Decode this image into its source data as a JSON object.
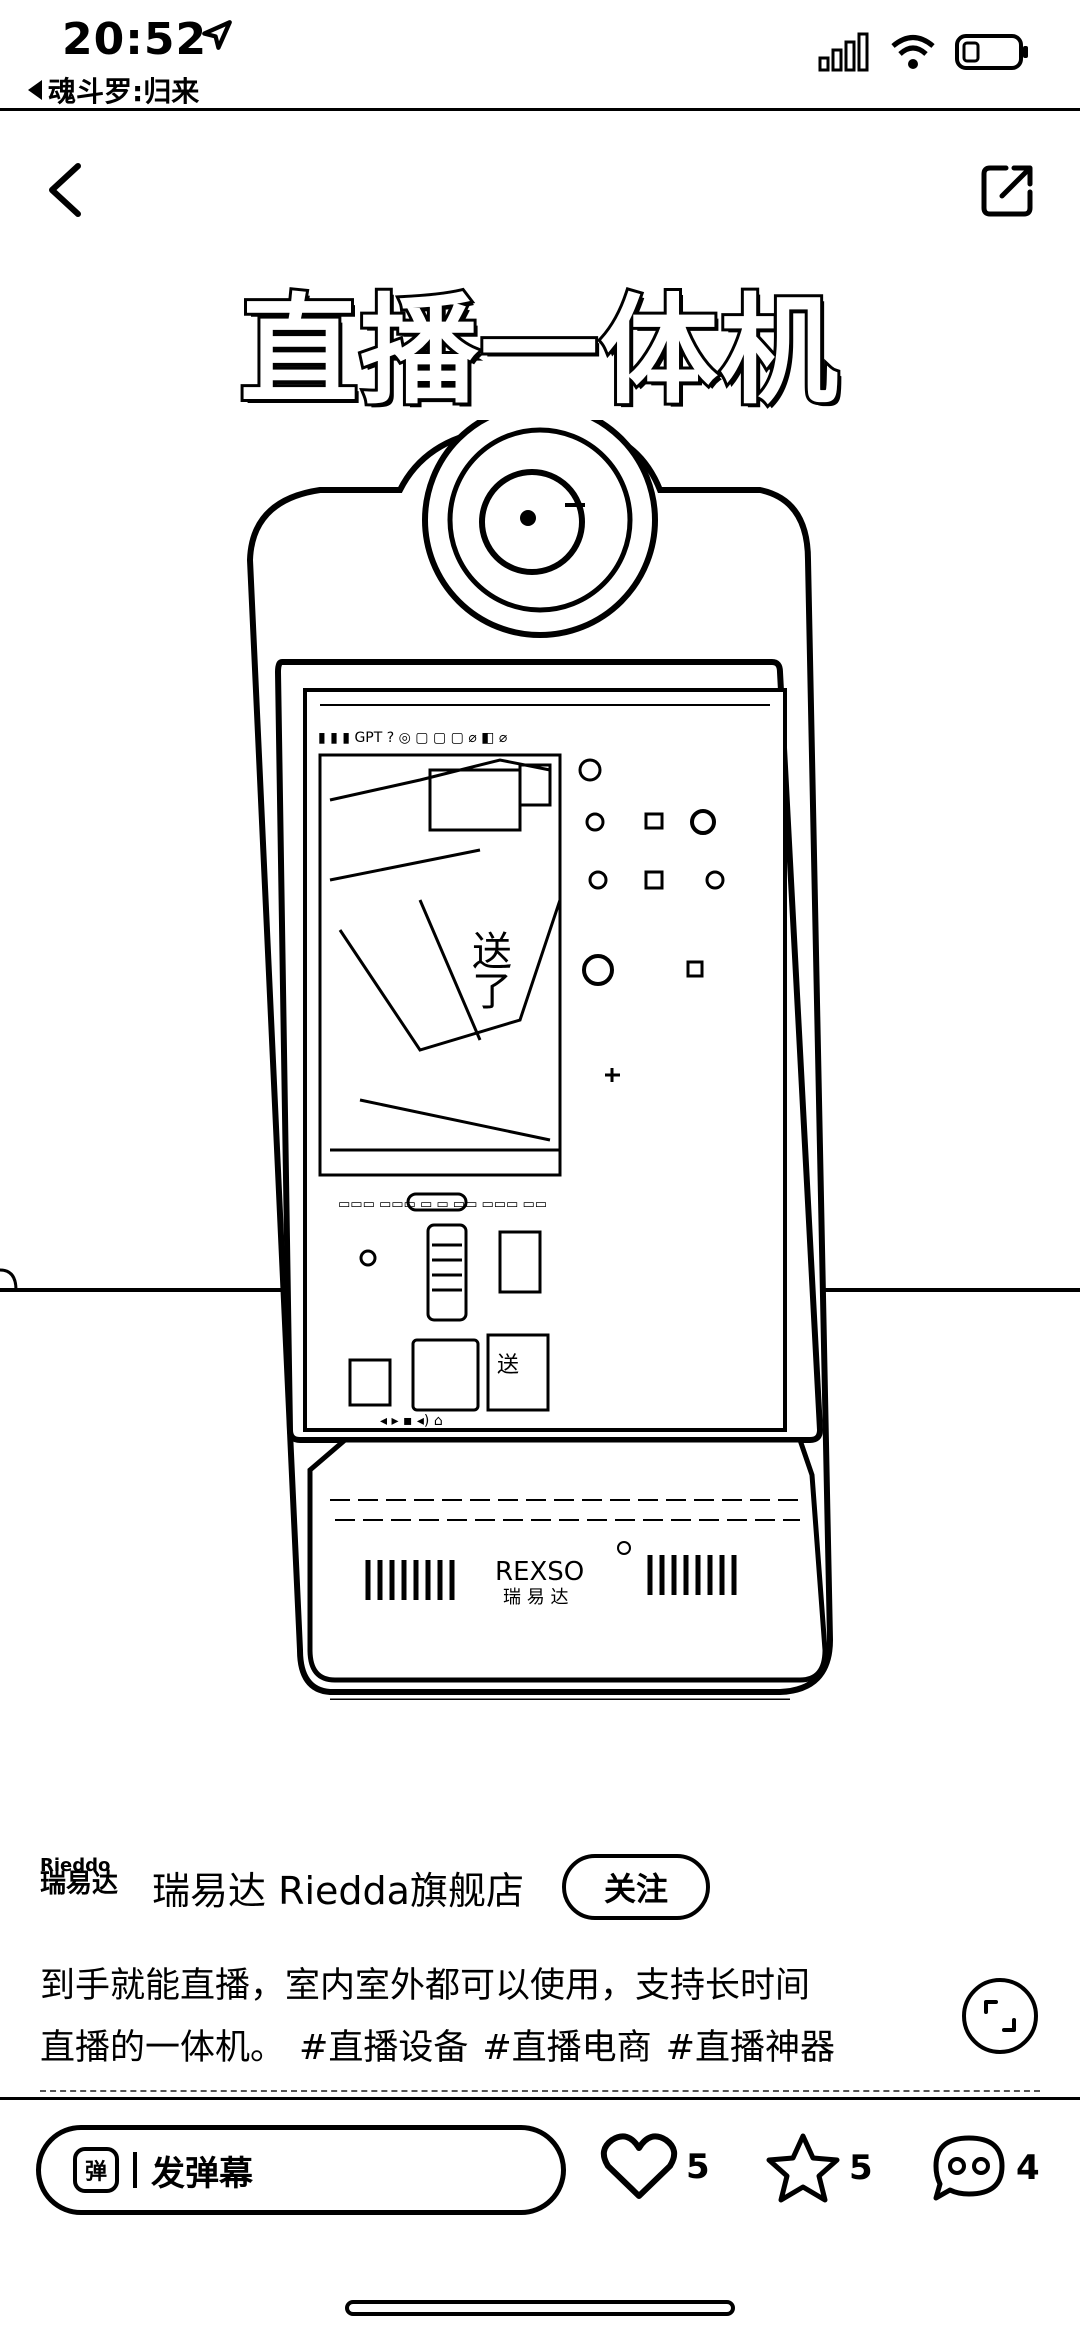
{
  "status_bar": {
    "time": "20:52",
    "back_app": "魂斗罗:归来"
  },
  "hero": {
    "title": "直播一体机",
    "device_brand": "REXSO",
    "device_brand_sub": "瑞易达"
  },
  "shop": {
    "logo_line1": "Rieddo",
    "logo_line2": "瑞易达",
    "name": "瑞易达 Riedda旗舰店",
    "follow_label": "关注"
  },
  "description": {
    "line1": "到手就能直播，室内室外都可以使用，支持长时间",
    "line2": "直播的一体机。",
    "tags": [
      "#直播设备",
      "#直播电商",
      "#直播神器"
    ]
  },
  "bottom_bar": {
    "danmu_icon_label": "弹",
    "danmu_placeholder": "发弹幕",
    "likes": "5",
    "favorites": "5",
    "comments": "4"
  }
}
